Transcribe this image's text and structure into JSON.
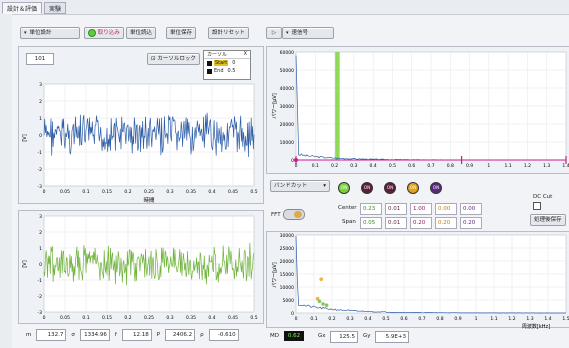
{
  "tabs": [
    "設計＆評価",
    "実験"
  ],
  "toolbar": {
    "mode_select": "単位設計",
    "buttons": [
      "取り込み",
      "単位読込",
      "単位保存",
      "設計リセット"
    ],
    "unit_select": "速信号"
  },
  "time_plot": {
    "index_value": "101",
    "cursor_lock_label": "カーソルロック",
    "cursor_panel": {
      "title": "カーソル",
      "col": "X",
      "rows": [
        {
          "name": "Start",
          "value": "0"
        },
        {
          "name": "End",
          "value": "0.5"
        }
      ]
    },
    "ylabel": "[V]",
    "xlabel": "時間",
    "yticks": [
      "3",
      "2",
      "1",
      "0",
      "-1",
      "-2",
      "-3"
    ],
    "xticks": [
      "0",
      "0.05",
      "0.1",
      "0.15",
      "0.2",
      "0.25",
      "0.3",
      "0.35",
      "0.4",
      "0.45",
      "0.5"
    ]
  },
  "filtered_plot": {
    "ylabel": "[V]",
    "yticks": [
      "3",
      "2",
      "1",
      "0",
      "-1",
      "-2",
      "-3"
    ],
    "xticks": [
      "0",
      "0.05",
      "0.1",
      "0.15",
      "0.2",
      "0.25",
      "0.3",
      "0.35",
      "0.4",
      "0.45",
      "0.5"
    ]
  },
  "stats": [
    {
      "label": "m",
      "value": "132.7"
    },
    {
      "label": "σ",
      "value": "1334.96"
    },
    {
      "label": "f",
      "value": "12.18"
    },
    {
      "label": "P",
      "value": "2406.2"
    },
    {
      "label": "ρ",
      "value": "-0.610"
    }
  ],
  "spectrum": {
    "ylabel": "パワー[μV]",
    "yticks": [
      "60000",
      "50000",
      "40000",
      "30000",
      "20000",
      "10000",
      "0"
    ],
    "xticks": [
      "0",
      "0.1",
      "0.2",
      "0.3",
      "0.4",
      "0.5",
      "0.6",
      "0.7",
      "0.8",
      "0.9",
      "1",
      "1.1",
      "1.2",
      "1.3",
      "1.4"
    ]
  },
  "filter": {
    "type_select": "バンドカット",
    "leds": [
      "ON",
      "ON",
      "ON",
      "ON",
      "ON"
    ],
    "center_label": "Center",
    "span_label": "Span",
    "center_values": [
      "0.23",
      "0.01",
      "1.00",
      "0.00",
      "0.00"
    ],
    "span_values": [
      "0.05",
      "0.01",
      "0.20",
      "0.20",
      "0.20"
    ],
    "fft_label": "FFT",
    "dc_cut_label": "DC Cut",
    "save_after_label": "処理後保存"
  },
  "result_spectrum": {
    "ylabel": "パワー[μV]",
    "yticks": [
      "30000",
      "25000",
      "20000",
      "15000",
      "10000",
      "5000",
      "0"
    ],
    "xticks": [
      "0",
      "0.1",
      "0.2",
      "0.3",
      "0.4",
      "0.5",
      "0.6",
      "0.7",
      "0.8",
      "0.9",
      "1",
      "1.1",
      "1.2",
      "1.3",
      "1.4",
      "1.5"
    ],
    "xlabel": "周波数[kHz]"
  },
  "bottom_stats": {
    "md_label": "MD",
    "md_value": "0.62",
    "gx_label": "Gx",
    "gx_value": "125.5",
    "gy_label": "Gy",
    "gy_value": "5.9E+3"
  },
  "colors": {
    "accent_green": "#7bd33a",
    "trace_blue": "#2f5ea8",
    "trace_green": "#6fb33c",
    "marker_pink": "#d01a8c",
    "led_dark": "#5a1f3a",
    "led_orange": "#e2a11a",
    "led_purple": "#5a2a80"
  }
}
